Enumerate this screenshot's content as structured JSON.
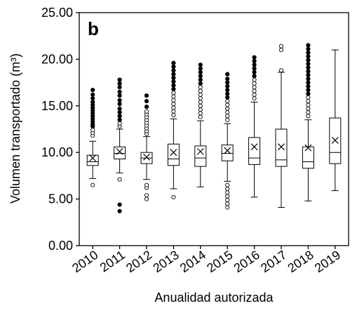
{
  "chart_data": {
    "type": "box",
    "panel_label": "b",
    "xlabel": "Anualidad autorizada",
    "ylabel": "Volumen transportado (m³)",
    "ylim": [
      0,
      25
    ],
    "yticks": [
      "0.00",
      "5.00",
      "10.00",
      "15.00",
      "20.00",
      "25.00"
    ],
    "grid": false,
    "categories": [
      "2010",
      "2011",
      "2012",
      "2013",
      "2014",
      "2015",
      "2016",
      "2017",
      "2018",
      "2019"
    ],
    "boxes": [
      {
        "year": "2010",
        "whisker_low": 7.2,
        "q1": 8.6,
        "median": 9.0,
        "q3": 9.7,
        "whisker_high": 11.2,
        "mean": 9.4,
        "outliers_open": [
          6.5,
          11.8,
          12.1,
          12.4
        ],
        "outliers_filled": [
          12.8,
          13.0,
          13.3,
          13.6,
          13.9,
          14.2,
          14.5,
          14.8,
          15.1,
          15.4,
          15.8,
          16.2,
          16.7
        ]
      },
      {
        "year": "2011",
        "whisker_low": 7.8,
        "q1": 9.3,
        "median": 9.9,
        "q3": 10.6,
        "whisker_high": 12.5,
        "mean": 10.1,
        "outliers_open": [
          7.1,
          12.8,
          13.1
        ],
        "outliers_filled": [
          3.7,
          4.4,
          13.5,
          13.9,
          14.3,
          14.7,
          15.2,
          15.6,
          16.1,
          16.5,
          17.0,
          17.4,
          17.8
        ]
      },
      {
        "year": "2012",
        "whisker_low": 7.1,
        "q1": 8.8,
        "median": 9.4,
        "q3": 10.0,
        "whisker_high": 11.7,
        "mean": 9.5,
        "outliers_open": [
          5.0,
          5.4,
          6.2,
          6.5,
          12.0,
          12.3,
          12.6,
          12.9,
          13.2,
          13.5,
          13.8,
          14.1,
          14.4
        ],
        "outliers_filled": [
          14.9,
          15.5,
          16.1
        ]
      },
      {
        "year": "2013",
        "whisker_low": 6.1,
        "q1": 8.6,
        "median": 9.3,
        "q3": 10.9,
        "whisker_high": 13.6,
        "mean": 10.0,
        "outliers_open": [
          5.2,
          14.0,
          14.4,
          14.8,
          15.2,
          15.6,
          16.0,
          16.4
        ],
        "outliers_filled": [
          16.8,
          17.2,
          17.6,
          18.0,
          18.4,
          18.8,
          19.2,
          19.6
        ]
      },
      {
        "year": "2014",
        "whisker_low": 6.3,
        "q1": 8.5,
        "median": 9.4,
        "q3": 10.7,
        "whisker_high": 13.4,
        "mean": 10.1,
        "outliers_open": [
          13.8,
          14.2,
          14.6,
          15.0,
          15.4,
          15.8,
          16.2,
          16.6,
          17.0
        ],
        "outliers_filled": [
          17.4,
          17.8,
          18.2,
          18.6,
          19.0,
          19.4
        ]
      },
      {
        "year": "2015",
        "whisker_low": 6.9,
        "q1": 9.1,
        "median": 9.9,
        "q3": 10.8,
        "whisker_high": 13.1,
        "mean": 10.2,
        "outliers_open": [
          4.1,
          4.5,
          4.9,
          5.3,
          5.7,
          6.1,
          6.5,
          13.5,
          13.9,
          14.3,
          14.7,
          15.1,
          15.5
        ],
        "outliers_filled": [
          15.9,
          16.3,
          16.7,
          17.1,
          17.5,
          17.9,
          18.4
        ]
      },
      {
        "year": "2016",
        "whisker_low": 5.2,
        "q1": 8.7,
        "median": 9.4,
        "q3": 11.6,
        "whisker_high": 15.4,
        "mean": 10.6,
        "outliers_open": [
          15.8,
          16.2,
          16.6,
          17.0,
          17.4,
          17.8
        ],
        "outliers_filled": [
          18.2,
          18.6,
          19.0,
          19.4,
          19.8,
          20.2
        ]
      },
      {
        "year": "2017",
        "whisker_low": 4.1,
        "q1": 8.5,
        "median": 9.2,
        "q3": 12.5,
        "whisker_high": 18.6,
        "mean": 10.6,
        "outliers_open": [
          18.8,
          21.0,
          21.4
        ],
        "outliers_filled": []
      },
      {
        "year": "2018",
        "whisker_low": 4.8,
        "q1": 8.3,
        "median": 9.0,
        "q3": 10.6,
        "whisker_high": 13.5,
        "mean": 10.5,
        "outliers_open": [
          13.9,
          14.3,
          14.7,
          15.1,
          15.5,
          15.9
        ],
        "outliers_filled": [
          16.3,
          16.7,
          17.1,
          17.5,
          17.9,
          18.3,
          18.7,
          19.1,
          19.5,
          19.9,
          20.3,
          20.7,
          21.1,
          21.5
        ]
      },
      {
        "year": "2019",
        "whisker_low": 5.9,
        "q1": 8.8,
        "median": 10.0,
        "q3": 13.7,
        "whisker_high": 21.0,
        "mean": 11.3,
        "outliers_open": [],
        "outliers_filled": []
      }
    ]
  }
}
